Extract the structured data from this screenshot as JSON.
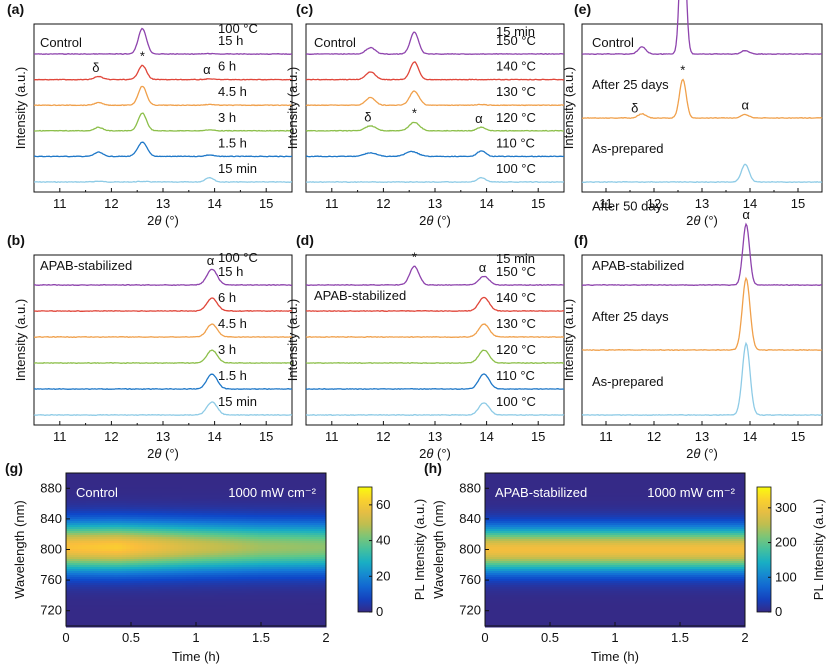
{
  "colors": {
    "purple": "#8e44ad",
    "red": "#e0463a",
    "orange": "#f0a04b",
    "green": "#8cbf4a",
    "blue": "#1f78c8",
    "lightblue": "#8ecbe6"
  },
  "chart_data": [
    {
      "panel": "(a)",
      "type": "line",
      "title": "Control",
      "header": "100 °C",
      "xlabel": "2θ (°)",
      "ylabel": "Intensity (a.u.)",
      "xlim": [
        10.5,
        15.5
      ],
      "xticks": [
        "11",
        "12",
        "13",
        "14",
        "15"
      ],
      "annotations": [
        {
          "text": "δ",
          "x": 11.7,
          "trace": 4
        },
        {
          "text": "*",
          "x": 12.6,
          "trace": 4
        },
        {
          "text": "α",
          "x": 13.85,
          "trace": 4
        }
      ],
      "series": [
        {
          "name": "15 min",
          "color": "lightblue",
          "peaks": [
            [
              11.75,
              0.05,
              0.1
            ],
            [
              12.6,
              0.04,
              0.1
            ],
            [
              13.9,
              0.32,
              0.08
            ]
          ]
        },
        {
          "name": "1.5 h",
          "color": "blue",
          "peaks": [
            [
              11.75,
              0.3,
              0.08
            ],
            [
              12.6,
              1.0,
              0.09
            ],
            [
              13.9,
              0.1,
              0.08
            ]
          ]
        },
        {
          "name": "3 h",
          "color": "green",
          "peaks": [
            [
              11.75,
              0.25,
              0.08
            ],
            [
              12.6,
              1.25,
              0.08
            ],
            [
              13.9,
              0.07,
              0.08
            ]
          ]
        },
        {
          "name": "4.5 h",
          "color": "orange",
          "peaks": [
            [
              11.75,
              0.18,
              0.08
            ],
            [
              12.6,
              1.35,
              0.08
            ],
            [
              13.9,
              0.06,
              0.08
            ]
          ]
        },
        {
          "name": "6 h",
          "color": "red",
          "peaks": [
            [
              11.75,
              0.22,
              0.08
            ],
            [
              12.6,
              1.0,
              0.08
            ],
            [
              13.9,
              0.05,
              0.08
            ]
          ]
        },
        {
          "name": "15 h",
          "color": "purple",
          "peaks": [
            [
              11.75,
              0.0,
              0.08
            ],
            [
              12.6,
              1.8,
              0.08
            ],
            [
              13.9,
              0.03,
              0.08
            ]
          ]
        }
      ]
    },
    {
      "panel": "(b)",
      "type": "line",
      "title": "APAB-stabilized",
      "header": "100 °C",
      "xlabel": "2θ (°)",
      "ylabel": "Intensity (a.u.)",
      "xlim": [
        10.5,
        15.5
      ],
      "xticks": [
        "11",
        "12",
        "13",
        "14",
        "15"
      ],
      "annotations": [
        {
          "text": "α",
          "x": 13.92,
          "trace": 5
        }
      ],
      "series": [
        {
          "name": "15 min",
          "color": "lightblue",
          "peaks": [
            [
              13.95,
              0.9,
              0.1
            ]
          ]
        },
        {
          "name": "1.5 h",
          "color": "blue",
          "peaks": [
            [
              13.95,
              1.05,
              0.1
            ]
          ]
        },
        {
          "name": "3 h",
          "color": "green",
          "peaks": [
            [
              13.95,
              0.9,
              0.1
            ]
          ]
        },
        {
          "name": "4.5 h",
          "color": "orange",
          "peaks": [
            [
              13.95,
              0.9,
              0.1
            ]
          ]
        },
        {
          "name": "6 h",
          "color": "red",
          "peaks": [
            [
              13.95,
              0.9,
              0.1
            ]
          ]
        },
        {
          "name": "15 h",
          "color": "purple",
          "peaks": [
            [
              13.95,
              1.1,
              0.1
            ]
          ]
        }
      ]
    },
    {
      "panel": "(c)",
      "type": "line",
      "title": "Control",
      "header": "15 min",
      "xlabel": "2θ (°)",
      "ylabel": "Intensity (a.u.)",
      "xlim": [
        10.5,
        15.5
      ],
      "xticks": [
        "11",
        "12",
        "13",
        "14",
        "15"
      ],
      "annotations": [
        {
          "text": "δ",
          "x": 11.7,
          "trace": 2
        },
        {
          "text": "*",
          "x": 12.6,
          "trace": 2
        },
        {
          "text": "α",
          "x": 13.85,
          "trace": 2
        }
      ],
      "series": [
        {
          "name": "100 °C",
          "color": "lightblue",
          "peaks": [
            [
              13.9,
              0.3,
              0.08
            ]
          ]
        },
        {
          "name": "110 °C",
          "color": "blue",
          "peaks": [
            [
              11.75,
              0.25,
              0.12
            ],
            [
              12.55,
              0.35,
              0.12
            ],
            [
              13.9,
              0.4,
              0.08
            ]
          ]
        },
        {
          "name": "120 °C",
          "color": "green",
          "peaks": [
            [
              11.75,
              0.35,
              0.1
            ],
            [
              12.6,
              0.6,
              0.1
            ],
            [
              13.9,
              0.25,
              0.08
            ]
          ]
        },
        {
          "name": "130 °C",
          "color": "orange",
          "peaks": [
            [
              11.75,
              0.55,
              0.09
            ],
            [
              12.6,
              1.0,
              0.09
            ],
            [
              13.9,
              0.05,
              0.08
            ]
          ]
        },
        {
          "name": "140 °C",
          "color": "red",
          "peaks": [
            [
              11.75,
              0.55,
              0.09
            ],
            [
              12.6,
              1.25,
              0.08
            ]
          ]
        },
        {
          "name": "150 °C",
          "color": "purple",
          "peaks": [
            [
              11.75,
              0.45,
              0.09
            ],
            [
              12.6,
              1.55,
              0.08
            ]
          ]
        }
      ]
    },
    {
      "panel": "(d)",
      "type": "line",
      "title": "APAB-stabilized",
      "header": "15 min",
      "xlabel": "2θ (°)",
      "ylabel": "Intensity (a.u.)",
      "xlim": [
        10.5,
        15.5
      ],
      "xticks": [
        "11",
        "12",
        "13",
        "14",
        "15"
      ],
      "annotations": [
        {
          "text": "*",
          "x": 12.6,
          "trace": 5
        },
        {
          "text": "α",
          "x": 13.92,
          "trace": 5
        }
      ],
      "series": [
        {
          "name": "100 °C",
          "color": "lightblue",
          "peaks": [
            [
              13.95,
              0.85,
              0.1
            ]
          ]
        },
        {
          "name": "110 °C",
          "color": "blue",
          "peaks": [
            [
              13.95,
              1.05,
              0.1
            ]
          ]
        },
        {
          "name": "120 °C",
          "color": "green",
          "peaks": [
            [
              13.95,
              0.9,
              0.1
            ]
          ]
        },
        {
          "name": "130 °C",
          "color": "orange",
          "peaks": [
            [
              13.95,
              0.9,
              0.1
            ]
          ]
        },
        {
          "name": "140 °C",
          "color": "red",
          "peaks": [
            [
              13.95,
              0.95,
              0.1
            ]
          ]
        },
        {
          "name": "150 °C",
          "color": "purple",
          "peaks": [
            [
              12.6,
              1.3,
              0.09
            ],
            [
              13.95,
              0.6,
              0.1
            ]
          ]
        }
      ]
    },
    {
      "panel": "(e)",
      "type": "line",
      "title": "Control",
      "xlabel": "2θ (°)",
      "ylabel": "Intensity (a.u.)",
      "xlim": [
        10.5,
        15.5
      ],
      "xticks": [
        "11",
        "12",
        "13",
        "14",
        "15"
      ],
      "annotations": [
        {
          "text": "δ",
          "x": 11.6,
          "trace": 1
        },
        {
          "text": "*",
          "x": 12.6,
          "trace": 1
        },
        {
          "text": "α",
          "x": 13.9,
          "trace": 1
        }
      ],
      "series": [
        {
          "name": "As-prepared",
          "color": "lightblue",
          "peaks": [
            [
              13.9,
              0.5,
              0.08
            ]
          ]
        },
        {
          "name": "After 25 days",
          "color": "orange",
          "peaks": [
            [
              11.75,
              0.12,
              0.08
            ],
            [
              12.6,
              1.1,
              0.07
            ],
            [
              13.9,
              0.1,
              0.08
            ]
          ]
        },
        {
          "name": "After 50 days",
          "color": "purple",
          "peaks": [
            [
              11.75,
              0.2,
              0.08
            ],
            [
              12.6,
              4.2,
              0.06
            ],
            [
              13.9,
              0.1,
              0.08
            ]
          ]
        }
      ]
    },
    {
      "panel": "(f)",
      "type": "line",
      "title": "APAB-stabilized",
      "xlabel": "2θ (°)",
      "ylabel": "Intensity (a.u.)",
      "xlim": [
        10.5,
        15.5
      ],
      "xticks": [
        "11",
        "12",
        "13",
        "14",
        "15"
      ],
      "annotations": [
        {
          "text": "α",
          "x": 13.92,
          "trace": 2
        }
      ],
      "series": [
        {
          "name": "As-prepared",
          "color": "lightblue",
          "peaks": [
            [
              13.92,
              2.0,
              0.08
            ]
          ]
        },
        {
          "name": "After 25 days",
          "color": "orange",
          "peaks": [
            [
              13.92,
              2.0,
              0.08
            ]
          ]
        },
        {
          "name": "After 50 days",
          "color": "purple",
          "peaks": [
            [
              13.92,
              1.7,
              0.07
            ]
          ]
        }
      ]
    },
    {
      "panel": "(g)",
      "type": "heatmap",
      "title": "Control",
      "condition": "1000 mW cm⁻²",
      "xlabel": "Time (h)",
      "ylabel": "Wavelength (nm)",
      "xlim": [
        0,
        2
      ],
      "ylim": [
        700,
        900
      ],
      "xticks": [
        "0",
        "0.5",
        "1",
        "1.5",
        "2"
      ],
      "yticks": [
        "720",
        "760",
        "800",
        "840",
        "880"
      ],
      "colorbar_label": "PL Intensity (a.u.)",
      "colorbar_ticks": [
        "0",
        "20",
        "40",
        "60"
      ],
      "colorbar_max": 70,
      "peak_wavelength": 803,
      "peak_width_nm": 22,
      "intensity_vs_time": [
        [
          0,
          60
        ],
        [
          0.4,
          62
        ],
        [
          1.0,
          52
        ],
        [
          1.5,
          46
        ],
        [
          2.0,
          44
        ]
      ]
    },
    {
      "panel": "(h)",
      "type": "heatmap",
      "title": "APAB-stabilized",
      "condition": "1000 mW cm⁻²",
      "xlabel": "Time (h)",
      "ylabel": "Wavelength (nm)",
      "xlim": [
        0,
        2
      ],
      "ylim": [
        700,
        900
      ],
      "xticks": [
        "0",
        "0.5",
        "1",
        "1.5",
        "2"
      ],
      "yticks": [
        "720",
        "760",
        "800",
        "840",
        "880"
      ],
      "colorbar_label": "PL Intensity (a.u.)",
      "colorbar_ticks": [
        "0",
        "100",
        "200",
        "300"
      ],
      "colorbar_max": 360,
      "peak_wavelength": 800,
      "peak_width_nm": 20,
      "intensity_vs_time": [
        [
          0,
          300
        ],
        [
          1.0,
          300
        ],
        [
          2.0,
          300
        ]
      ]
    }
  ]
}
